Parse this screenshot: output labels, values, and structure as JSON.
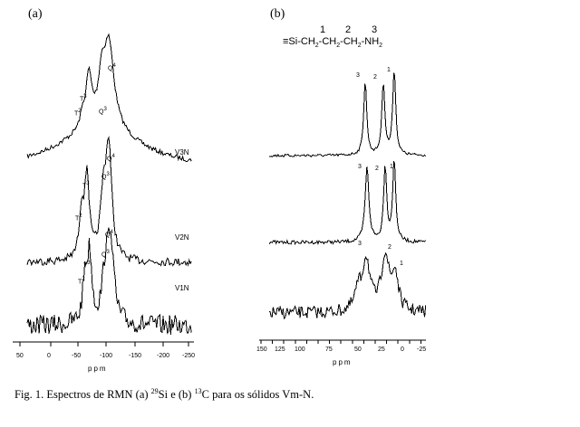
{
  "panel_a": {
    "label": "(a)",
    "x_ticks": [
      "50",
      "0",
      "-50",
      "-100",
      "-150",
      "-200",
      "-250"
    ],
    "x_label": "ppm",
    "samples": [
      {
        "name": "V3N",
        "peaks": [
          {
            "label": "T",
            "sup": "3"
          },
          {
            "label": "T",
            "sup": "2"
          },
          {
            "label": "Q",
            "sup": "4"
          },
          {
            "label": "Q",
            "sup": "3"
          }
        ]
      },
      {
        "name": "V2N",
        "peaks": [
          {
            "label": "T",
            "sup": "3"
          },
          {
            "label": "T",
            "sup": "2"
          },
          {
            "label": "Q",
            "sup": "4"
          },
          {
            "label": "Q",
            "sup": "3"
          }
        ]
      },
      {
        "name": "V1N",
        "peaks": [
          {
            "label": "T",
            "sup": "3"
          },
          {
            "label": "T",
            "sup": "2"
          },
          {
            "label": "Q",
            "sup": "4"
          },
          {
            "label": "Q",
            "sup": "3"
          }
        ]
      }
    ]
  },
  "panel_b": {
    "label": "(b)",
    "structure": {
      "prefix": "≡Si-",
      "g1": "CH",
      "g1_sub": "2",
      "g2": "CH",
      "g2_sub": "2",
      "g3": "CH",
      "g3_sub": "2",
      "tail": "NH",
      "tail_sub": "2",
      "num1": "1",
      "num2": "2",
      "num3": "3"
    },
    "x_ticks": [
      "150",
      "125",
      "100",
      "75",
      "50",
      "25",
      "0",
      "-25"
    ],
    "x_label": "ppm",
    "peak_labels": [
      "3",
      "2",
      "1"
    ]
  },
  "caption": {
    "prefix": "Fig. 1. Espectros de RMN (a) ",
    "si_mass": "29",
    "mid": "Si e  (b) ",
    "c_mass": "13",
    "suffix": "C para os sólidos Vm-N."
  }
}
